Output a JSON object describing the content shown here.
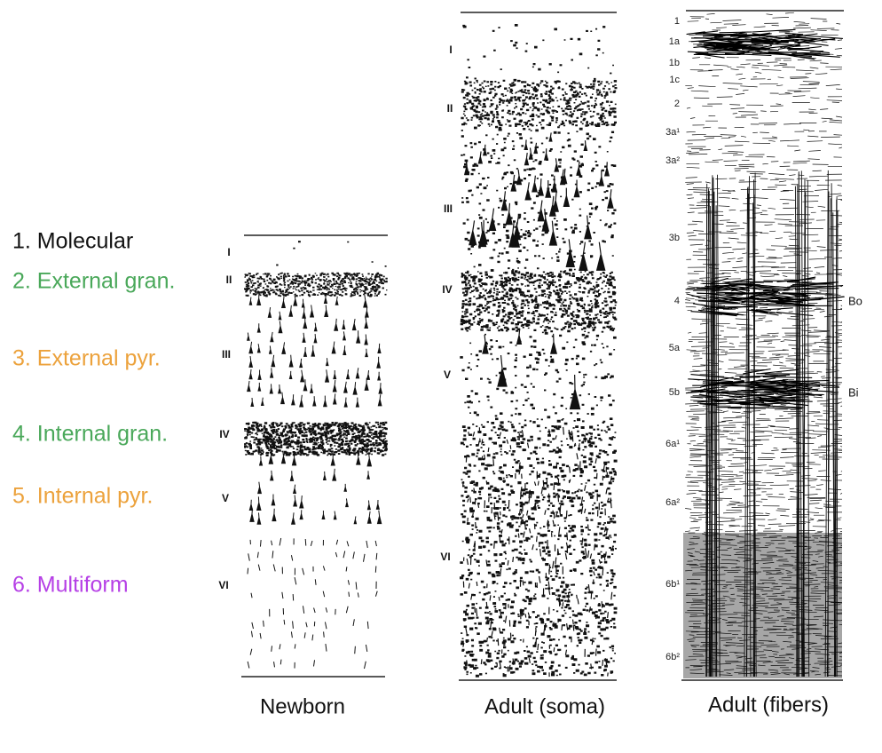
{
  "legend": {
    "items": [
      {
        "label": "1. Molecular"
      },
      {
        "label": "2. External gran."
      },
      {
        "label": "3. External pyr."
      },
      {
        "label": "4. Internal gran."
      },
      {
        "label": "5. Internal pyr."
      },
      {
        "label": "6. Multiform"
      }
    ]
  },
  "columns": {
    "newborn": {
      "caption": "Newborn",
      "layers": [
        "I",
        "II",
        "III",
        "IV",
        "V",
        "VI"
      ]
    },
    "soma": {
      "caption": "Adult (soma)",
      "layers": [
        "I",
        "II",
        "III",
        "IV",
        "V",
        "VI"
      ]
    },
    "fibers": {
      "caption": "Adult (fibers)",
      "layers": [
        "1",
        "1a",
        "1b",
        "1c",
        "2",
        "3a¹",
        "3a²",
        "3b",
        "4",
        "5a",
        "5b",
        "6a¹",
        "6a²",
        "6b¹",
        "6b²"
      ],
      "markers": [
        "Bo",
        "Bi"
      ]
    }
  }
}
